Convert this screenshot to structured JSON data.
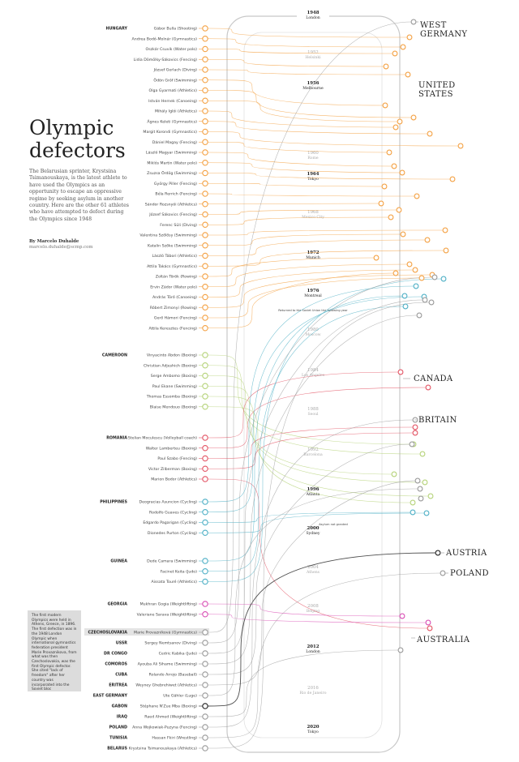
{
  "title_line1": "Olympic",
  "title_line2": "defectors",
  "intro": "The Belarusian sprinter, Krystsina Tsimanouskaya, is the latest athlete to have used the Olympics as an opportunity to escape an oppressive regime by seeking asylum in another country. Here are the other 61 athletes who have attempted to defect during the Olympics since 1948",
  "byline": {
    "author": "By Marcelo Duhalde",
    "email": "marcelo.duhalde@scmp.com"
  },
  "note": "The first modern Olympics were held in Athens, Greece, in 1896. The first defection was in the 1948 London Olympic when international gymnastics federation president Marie Provaznikova, from what was then Czechoslovakia, was the first Olympic defector. She cited \"lack of freedom\" after her country was incorporated into the Soviet bloc",
  "colors": {
    "HUNGARY": "#f4a245",
    "CAMEROON": "#b6d37a",
    "ROMANIA": "#e35565",
    "PHILIPPINES": "#4fb0c6",
    "GUINEA": "#4fb0c6",
    "GEORGIA": "#d94fb5",
    "OTHER": "#9a9a9a",
    "GABON": "#222222",
    "SPINE": "#c8c8c8"
  },
  "groups": [
    {
      "country": "HUNGARY",
      "color": "HUNGARY",
      "athletes": [
        "Gábor Bulla (Shooting)",
        "Andrea Bodó-Molnár (Gymnastics)",
        "Oszkár Csuvik (Water polo)",
        "Lidia Dömölky-Sákovics (Fencing)",
        "József Gerlach (Diving)",
        "Ödön Gróf (Swimming)",
        "Olga Gyarmati (Athletics)",
        "István Hernek (Canoeing)",
        "Mihály Iglói (Athletics)",
        "Ágnes Keleti (Gymnastics)",
        "Margit Korondi (Gymnastics)",
        "Dániel Magay (Fencing)",
        "László Magyar (Swimming)",
        "Miklós Martin (Water polo)",
        "Zsuzsa Ördög (Swimming)",
        "György Piller (Fencing)",
        "Béla Rerrich (Fencing)",
        "Sándor Rozsnyói (Athletics)",
        "József Sákovics (Fencing)",
        "Ferenc Süli (Diving)",
        "Valentina Szőlősy (Swimming)",
        "Katalin Szőke (Swimming)",
        "László Tábori (Athletics)",
        "Attila Takács (Gymnastics)",
        "Zoltán Török (Rowing)",
        "Ervin Zádor (Water polo)",
        "András Törő (Canoeing)",
        "Róbert Zimonyi (Rowing)",
        "Gerő Hámori (Fencing)",
        "Attila Keresztes (Fencing)"
      ]
    },
    {
      "country": "CAMEROON",
      "color": "CAMEROON",
      "athletes": [
        "Vinyacinto Abdon (Boxing)",
        "Christian Adjeshich (Boxing)",
        "Serge Ambomo (Boxing)",
        "Paul Ekane (Swimming)",
        "Thomas Essomba (Boxing)",
        "Blaise Mendouo (Boxing)"
      ]
    },
    {
      "country": "ROMANIA",
      "color": "ROMANIA",
      "athletes": [
        "Stelian Moculescu (Volleyball coach)",
        "Walter Lamberteu (Boxing)",
        "Paul Szabo (Fencing)",
        "Victor Zilberman (Boxing)",
        "Marion Bodor (Athletics)"
      ]
    },
    {
      "country": "PHILIPPINES",
      "color": "PHILIPPINES",
      "athletes": [
        "Deogracias Asuncion (Cycling)",
        "Rodolfo Guaves (Cycling)",
        "Edgardo Pagarigan (Cycling)",
        "Dionedes Purton (Cycling)"
      ]
    },
    {
      "country": "GUINEA",
      "color": "GUINEA",
      "athletes": [
        "Dede Camara (Swimming)",
        "Facinet Keita (Judo)",
        "Aissata Touré (Athletics)"
      ]
    },
    {
      "country": "GEORGIA",
      "color": "GEORGIA",
      "athletes": [
        "Mukhran Gogia (Weightlifting)",
        "Valeriane Sarava (Weightlifting)"
      ]
    },
    {
      "country": "CZECHOSLOVAKIA",
      "color": "OTHER",
      "highlight": true,
      "athletes": [
        "Marie Provazníková (Gymnastics)"
      ]
    },
    {
      "country": "USSR",
      "color": "OTHER",
      "athletes": [
        "Sergey Nemtsanov (Diving)"
      ]
    },
    {
      "country": "DR CONGO",
      "color": "OTHER",
      "athletes": [
        "Cedric Kabika (Judo)"
      ]
    },
    {
      "country": "COMOROS",
      "color": "OTHER",
      "athletes": [
        "Ayouba Ali Sihame (Swimming)"
      ]
    },
    {
      "country": "CUBA",
      "color": "OTHER",
      "athletes": [
        "Rolando Arrojo (Baseball)"
      ]
    },
    {
      "country": "ERITREA",
      "color": "OTHER",
      "athletes": [
        "Weyney Ghebrehiwet (Athletics)"
      ]
    },
    {
      "country": "EAST GERMANY",
      "color": "OTHER",
      "athletes": [
        "Ute Gähler (Luge)"
      ]
    },
    {
      "country": "GABON",
      "color": "GABON",
      "athletes": [
        "Stéphane N'Zue Mba (Boxing)"
      ]
    },
    {
      "country": "IRAQ",
      "color": "OTHER",
      "athletes": [
        "Raed Ahmed (Weightlifting)"
      ]
    },
    {
      "country": "POLAND",
      "color": "OTHER",
      "athletes": [
        "Anna Wojkowiak-Puzyna (Fencing)"
      ]
    },
    {
      "country": "TUNISIA",
      "color": "OTHER",
      "athletes": [
        "Hassan Fkiri (Wrestling)"
      ]
    },
    {
      "country": "BELARUS",
      "color": "OTHER",
      "athletes": [
        "Krystsina Tsimanouskaya (Athletics)"
      ]
    }
  ],
  "games": [
    {
      "year": "1948",
      "city": "London",
      "active": true
    },
    {
      "year": "1952",
      "city": "Helsinki",
      "active": false
    },
    {
      "year": "1956",
      "city": "Melbourne",
      "active": true
    },
    {
      "year": "1960",
      "city": "Rome",
      "active": false
    },
    {
      "year": "1964",
      "city": "Tokyo",
      "active": true
    },
    {
      "year": "1968",
      "city": "Mexico City",
      "active": false
    },
    {
      "year": "1972",
      "city": "Munich",
      "active": true
    },
    {
      "year": "1976",
      "city": "Montreal",
      "active": true
    },
    {
      "year": "1980",
      "city": "Moscow",
      "active": false
    },
    {
      "year": "1984",
      "city": "Los Angeles",
      "active": false
    },
    {
      "year": "1988",
      "city": "Seoul",
      "active": false
    },
    {
      "year": "1992",
      "city": "Barcelona",
      "active": false
    },
    {
      "year": "1996",
      "city": "Atlanta",
      "active": true
    },
    {
      "year": "2000",
      "city": "Sydney",
      "active": true
    },
    {
      "year": "2004",
      "city": "Athens",
      "active": false
    },
    {
      "year": "2008",
      "city": "Beijing",
      "active": false
    },
    {
      "year": "2012",
      "city": "London",
      "active": true
    },
    {
      "year": "2016",
      "city": "Rio de Janeiro",
      "active": false
    },
    {
      "year": "2020",
      "city": "Tokyo",
      "active": true
    }
  ],
  "annotations": {
    "montreal_note": "Returned to the Soviet Union the following year",
    "sydney_note": "Asylum not granted"
  },
  "destinations": [
    {
      "name": "WEST GERMANY",
      "lines": [
        "WEST",
        "GERMANY"
      ]
    },
    {
      "name": "UNITED STATES",
      "lines": [
        "UNITED",
        "STATES"
      ]
    },
    {
      "name": "CANADA",
      "lines": [
        "CANADA"
      ]
    },
    {
      "name": "BRITAIN",
      "lines": [
        "BRITAIN"
      ]
    },
    {
      "name": "AUSTRIA",
      "lines": [
        "AUSTRIA"
      ]
    },
    {
      "name": "POLAND",
      "lines": [
        "POLAND"
      ]
    },
    {
      "name": "AUSTRALIA",
      "lines": [
        "AUSTRALIA"
      ]
    }
  ]
}
